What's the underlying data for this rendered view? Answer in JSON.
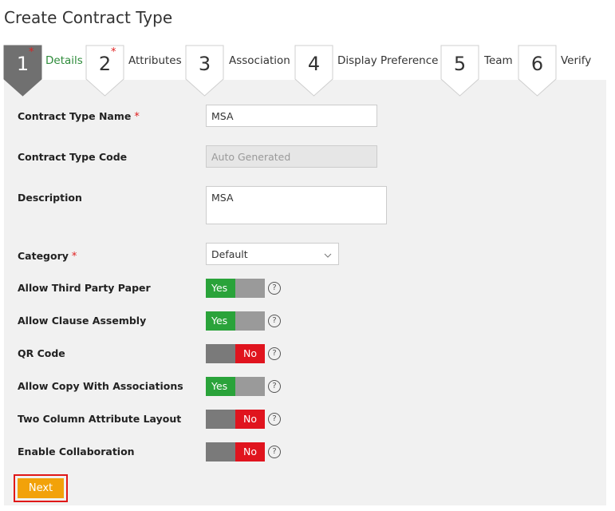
{
  "title": "Create Contract Type",
  "steps": [
    {
      "number": "1",
      "marker": "*",
      "label": "Details",
      "active": true
    },
    {
      "number": "2",
      "marker": "*",
      "label": "Attributes",
      "active": false
    },
    {
      "number": "3",
      "label": "Association",
      "active": false
    },
    {
      "number": "4",
      "label": "Display Preference",
      "active": false
    },
    {
      "number": "5",
      "label": "Team",
      "active": false
    },
    {
      "number": "6",
      "label": "Verify",
      "active": false
    }
  ],
  "form": {
    "fields": [
      {
        "label": "Contract Type Name",
        "marker": "*",
        "kind": "text",
        "value": "MSA"
      },
      {
        "label": "Contract Type Code",
        "kind": "disabled",
        "value": "Auto Generated"
      },
      {
        "label": "Description",
        "kind": "textarea",
        "value": "MSA"
      },
      {
        "label": "Category",
        "marker": "*",
        "kind": "select",
        "value": "Default"
      }
    ],
    "toggles": [
      {
        "label": "Allow Third Party Paper",
        "on": true,
        "state_label": "Yes"
      },
      {
        "label": "Allow Clause Assembly",
        "on": true,
        "state_label": "Yes"
      },
      {
        "label": "QR Code",
        "on": false,
        "state_label": "No"
      },
      {
        "label": "Allow Copy With Associations",
        "on": true,
        "state_label": "Yes"
      },
      {
        "label": "Two Column Attribute Layout",
        "on": false,
        "state_label": "No"
      },
      {
        "label": "Enable Collaboration",
        "on": false,
        "state_label": "No"
      }
    ],
    "help_icon": "?",
    "next_button": "Next"
  }
}
